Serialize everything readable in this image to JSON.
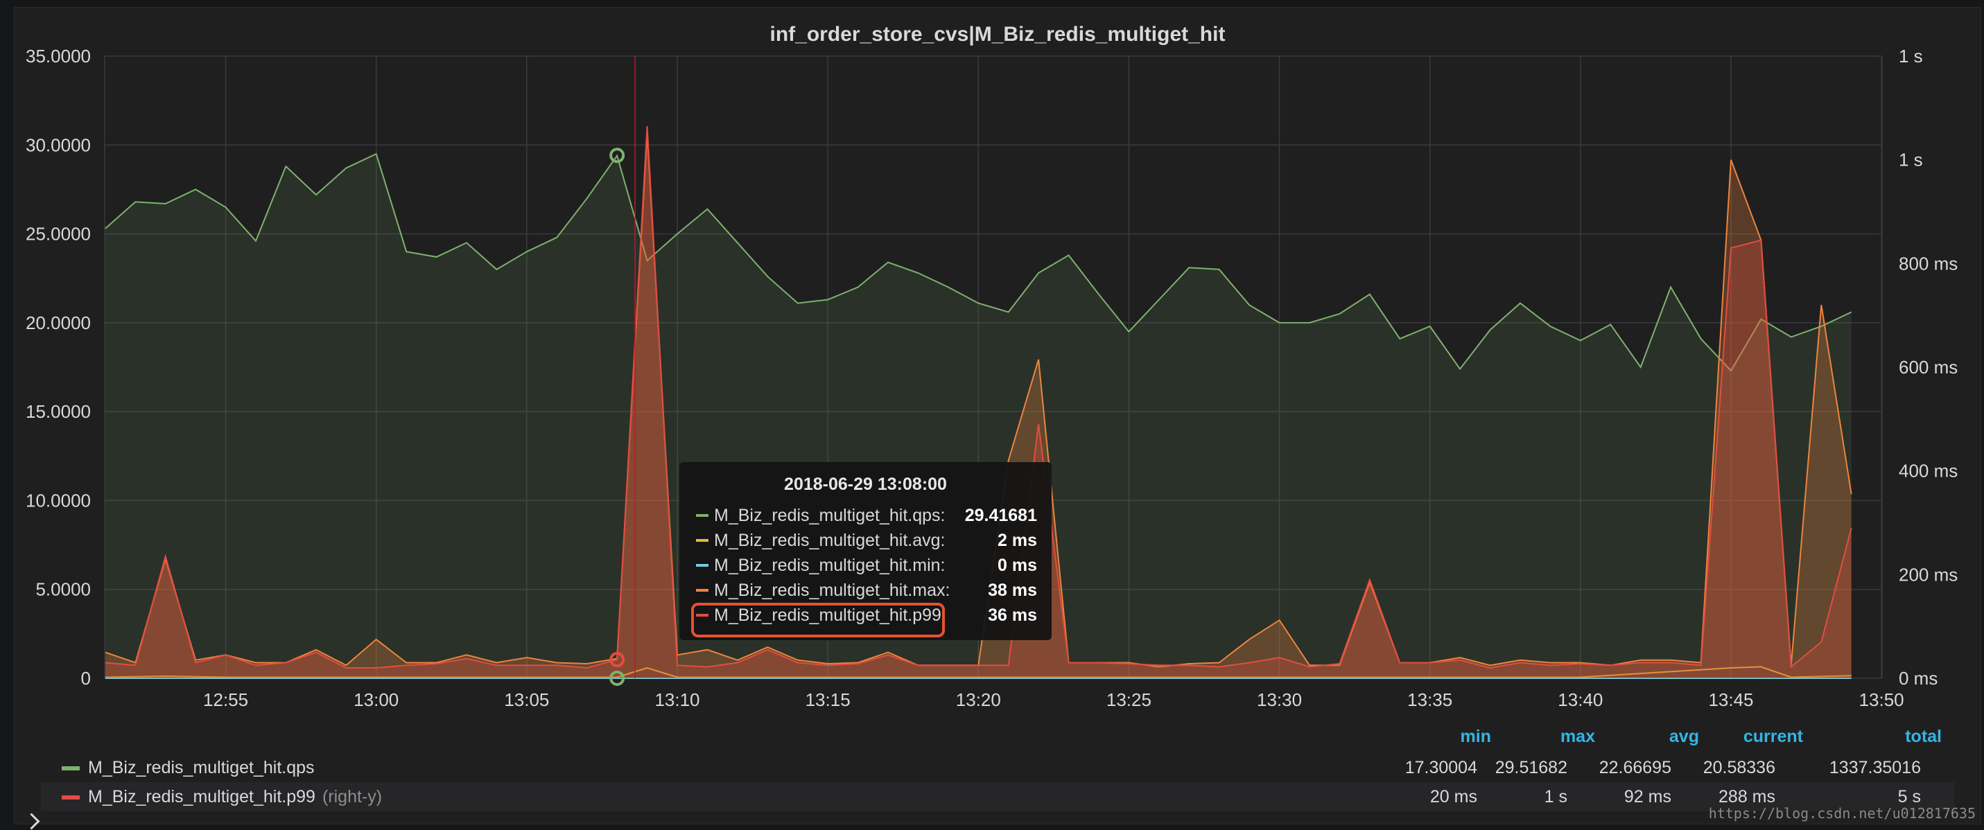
{
  "panel": {
    "title": "inf_order_store_cvs|M_Biz_redis_multiget_hit"
  },
  "chart_data": {
    "type": "line",
    "title": "inf_order_store_cvs|M_Biz_redis_multiget_hit",
    "xlabel": "",
    "ylabel": "",
    "x_ticks": [
      "12:55",
      "13:00",
      "13:05",
      "13:10",
      "13:15",
      "13:20",
      "13:25",
      "13:30",
      "13:35",
      "13:40",
      "13:45",
      "13:50"
    ],
    "y_left_ticks": [
      "0",
      "5.0000",
      "10.0000",
      "15.0000",
      "20.0000",
      "25.0000",
      "30.0000",
      "35.0000"
    ],
    "y_left_range": [
      0,
      35
    ],
    "y_right_ticks": [
      "0 ms",
      "200 ms",
      "400 ms",
      "600 ms",
      "800 ms",
      "1 s",
      "1 s"
    ],
    "y_right_range_ms": [
      0,
      1200
    ],
    "x_range": [
      "12:51",
      "13:50"
    ],
    "grid": true,
    "series": [
      {
        "name": "M_Biz_redis_multiget_hit.qps",
        "axis": "left",
        "color": "#7eb26d",
        "fill": true,
        "x": [
          "12:51",
          "12:52",
          "12:53",
          "12:54",
          "12:55",
          "12:56",
          "12:57",
          "12:58",
          "12:59",
          "13:00",
          "13:01",
          "13:02",
          "13:03",
          "13:04",
          "13:05",
          "13:06",
          "13:07",
          "13:08",
          "13:09",
          "13:10",
          "13:11",
          "13:12",
          "13:13",
          "13:14",
          "13:15",
          "13:16",
          "13:17",
          "13:18",
          "13:19",
          "13:20",
          "13:21",
          "13:22",
          "13:23",
          "13:24",
          "13:25",
          "13:26",
          "13:27",
          "13:28",
          "13:29",
          "13:30",
          "13:31",
          "13:32",
          "13:33",
          "13:34",
          "13:35",
          "13:36",
          "13:37",
          "13:38",
          "13:39",
          "13:40",
          "13:41",
          "13:42",
          "13:43",
          "13:44",
          "13:45",
          "13:46",
          "13:47",
          "13:48",
          "13:49"
        ],
        "values": [
          25.3,
          26.8,
          26.7,
          27.5,
          26.5,
          24.6,
          28.8,
          27.2,
          28.7,
          29.5,
          24.0,
          23.7,
          24.5,
          23.0,
          24.0,
          24.8,
          27.0,
          29.4,
          23.5,
          25.0,
          26.4,
          24.5,
          22.6,
          21.1,
          21.3,
          22.0,
          23.4,
          22.8,
          22.0,
          21.1,
          20.6,
          22.8,
          23.8,
          21.6,
          19.5,
          21.3,
          23.1,
          23.0,
          21.0,
          20.0,
          20.0,
          20.5,
          21.6,
          19.1,
          19.8,
          17.4,
          19.6,
          21.1,
          19.8,
          19.0,
          19.9,
          17.5,
          22.0,
          19.1,
          17.3,
          20.2,
          19.2,
          19.8,
          20.6
        ]
      },
      {
        "name": "M_Biz_redis_multiget_hit.avg",
        "axis": "right",
        "color": "#eab839",
        "fill": false,
        "x": [
          "12:51",
          "12:53",
          "12:55",
          "13:05",
          "13:08",
          "13:09",
          "13:10",
          "13:20",
          "13:25",
          "13:30",
          "13:35",
          "13:40",
          "13:45",
          "13:46",
          "13:47",
          "13:49"
        ],
        "values_ms": [
          2,
          4,
          2,
          2,
          2,
          20,
          2,
          2,
          2,
          2,
          2,
          2,
          20,
          22,
          2,
          5
        ]
      },
      {
        "name": "M_Biz_redis_multiget_hit.min",
        "axis": "right",
        "color": "#6ed0e0",
        "fill": false,
        "x": [
          "12:51",
          "13:49"
        ],
        "values_ms": [
          0,
          0
        ]
      },
      {
        "name": "M_Biz_redis_multiget_hit.max",
        "axis": "right",
        "color": "#ef843c",
        "fill": true,
        "x": [
          "12:51",
          "12:52",
          "12:53",
          "12:54",
          "12:55",
          "12:56",
          "12:57",
          "12:58",
          "12:59",
          "13:00",
          "13:01",
          "13:02",
          "13:03",
          "13:04",
          "13:05",
          "13:06",
          "13:07",
          "13:08",
          "13:09",
          "13:10",
          "13:11",
          "13:12",
          "13:13",
          "13:14",
          "13:15",
          "13:16",
          "13:17",
          "13:18",
          "13:19",
          "13:20",
          "13:21",
          "13:22",
          "13:23",
          "13:24",
          "13:25",
          "13:26",
          "13:27",
          "13:28",
          "13:29",
          "13:30",
          "13:31",
          "13:32",
          "13:33",
          "13:34",
          "13:35",
          "13:36",
          "13:37",
          "13:38",
          "13:39",
          "13:40",
          "13:41",
          "13:42",
          "13:43",
          "13:44",
          "13:45",
          "13:46",
          "13:47",
          "13:48",
          "13:49"
        ],
        "values_ms": [
          50,
          30,
          230,
          35,
          45,
          30,
          30,
          55,
          25,
          75,
          30,
          30,
          45,
          30,
          40,
          30,
          28,
          38,
          1050,
          45,
          55,
          35,
          60,
          35,
          28,
          30,
          50,
          25,
          25,
          25,
          420,
          615,
          30,
          30,
          30,
          22,
          28,
          30,
          75,
          112,
          25,
          25,
          185,
          30,
          30,
          40,
          25,
          35,
          30,
          30,
          25,
          35,
          35,
          30,
          1000,
          845,
          25,
          720,
          355
        ]
      },
      {
        "name": "M_Biz_redis_multiget_hit.p99",
        "axis": "right",
        "color": "#e24d42",
        "fill": true,
        "x": [
          "12:51",
          "12:52",
          "12:53",
          "12:54",
          "12:55",
          "12:56",
          "12:57",
          "12:58",
          "12:59",
          "13:00",
          "13:01",
          "13:02",
          "13:03",
          "13:04",
          "13:05",
          "13:06",
          "13:07",
          "13:08",
          "13:09",
          "13:10",
          "13:11",
          "13:12",
          "13:13",
          "13:14",
          "13:15",
          "13:16",
          "13:17",
          "13:18",
          "13:19",
          "13:20",
          "13:21",
          "13:22",
          "13:23",
          "13:24",
          "13:25",
          "13:26",
          "13:27",
          "13:28",
          "13:29",
          "13:30",
          "13:31",
          "13:32",
          "13:33",
          "13:34",
          "13:35",
          "13:36",
          "13:37",
          "13:38",
          "13:39",
          "13:40",
          "13:41",
          "13:42",
          "13:43",
          "13:44",
          "13:45",
          "13:46",
          "13:47",
          "13:48",
          "13:49"
        ],
        "values_ms": [
          30,
          25,
          235,
          30,
          45,
          25,
          30,
          50,
          20,
          20,
          25,
          28,
          38,
          25,
          25,
          25,
          20,
          36,
          1065,
          25,
          22,
          30,
          55,
          30,
          25,
          28,
          45,
          25,
          25,
          25,
          25,
          490,
          30,
          30,
          28,
          25,
          25,
          22,
          30,
          40,
          22,
          28,
          190,
          30,
          30,
          35,
          20,
          30,
          25,
          28,
          25,
          30,
          30,
          25,
          830,
          845,
          22,
          70,
          290
        ]
      }
    ],
    "hover": {
      "x": "13:08",
      "qps_marker": 29.41681,
      "p99_marker_ms": 36,
      "min_marker_ms": 0
    }
  },
  "tooltip": {
    "time": "2018-06-29 13:08:00",
    "rows": [
      {
        "label": "M_Biz_redis_multiget_hit.qps:",
        "value": "29.41681",
        "color": "#7eb26d"
      },
      {
        "label": "M_Biz_redis_multiget_hit.avg:",
        "value": "2 ms",
        "color": "#eab839"
      },
      {
        "label": "M_Biz_redis_multiget_hit.min:",
        "value": "0 ms",
        "color": "#6ed0e0"
      },
      {
        "label": "M_Biz_redis_multiget_hit.max:",
        "value": "38 ms",
        "color": "#ef843c"
      },
      {
        "label": "M_Biz_redis_multiget_hit.p99:",
        "value": "36 ms",
        "color": "#e24d42"
      }
    ]
  },
  "legend": {
    "headers": {
      "min": "min",
      "max": "max",
      "avg": "avg",
      "current": "current",
      "total": "total"
    },
    "rows": [
      {
        "name": "M_Biz_redis_multiget_hit.qps",
        "axis_note": "",
        "color": "#7eb26d",
        "min": "17.30004",
        "max": "29.51682",
        "avg": "22.66695",
        "current": "20.58336",
        "total": "1337.35016"
      },
      {
        "name": "M_Biz_redis_multiget_hit.p99",
        "axis_note": "(right-y)",
        "color": "#e24d42",
        "min": "20 ms",
        "max": "1 s",
        "avg": "92 ms",
        "current": "288 ms",
        "total": "5 s"
      }
    ]
  },
  "watermark": "https://blog.csdn.net/u012817635"
}
